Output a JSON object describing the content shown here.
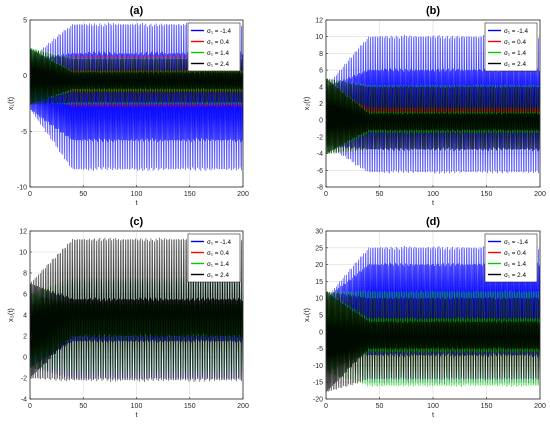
{
  "chart_data": [
    {
      "type": "line",
      "title": "(a)",
      "xlabel": "t",
      "ylabel": "x₁(t)",
      "xlim": [
        0,
        200
      ],
      "ylim": [
        -10,
        5
      ],
      "xticks": [
        0,
        50,
        100,
        150,
        200
      ],
      "yticks": [
        -10,
        -5,
        0,
        5
      ],
      "grid": true,
      "legend_position": "top-right",
      "series": [
        {
          "name": "σ₁ = -1.4",
          "color": "#0000ff",
          "hi_start": 1.5,
          "lo_start": -3.0,
          "hi": 4.6,
          "lo": -8.4,
          "hi_inner": 2.0,
          "lo_inner": -5.8
        },
        {
          "name": "σ₁ = 0.4",
          "color": "#ff0000",
          "hi_start": 1.2,
          "lo_start": -1.2,
          "hi": 1.8,
          "lo": -2.8,
          "hi_inner": 0.5,
          "lo_inner": -1.5
        },
        {
          "name": "σ₁ = 1.4",
          "color": "#00cc00",
          "hi_start": 2.5,
          "lo_start": -2.5,
          "hi": 1.6,
          "lo": -2.6,
          "hi_inner": 0.4,
          "lo_inner": -1.4
        },
        {
          "name": "σ₁ = 2.4",
          "color": "#000000",
          "hi_start": 2.4,
          "lo_start": -2.6,
          "hi": 1.5,
          "lo": -2.4,
          "hi_inner": 0.3,
          "lo_inner": -1.2
        }
      ]
    },
    {
      "type": "line",
      "title": "(b)",
      "xlabel": "t",
      "ylabel": "x₂(t)",
      "xlim": [
        0,
        200
      ],
      "ylim": [
        -8,
        12
      ],
      "xticks": [
        0,
        50,
        100,
        150,
        200
      ],
      "yticks": [
        -8,
        -6,
        -4,
        -2,
        0,
        2,
        4,
        6,
        8,
        10,
        12
      ],
      "grid": true,
      "legend_position": "top-right",
      "series": [
        {
          "name": "σ₁ = -1.4",
          "color": "#0000ff",
          "hi_start": 4.0,
          "lo_start": -3.0,
          "hi": 10.0,
          "lo": -6.2,
          "hi_inner": 6.0,
          "lo_inner": -3.5
        },
        {
          "name": "σ₁ = 0.4",
          "color": "#ff0000",
          "hi_start": 4.0,
          "lo_start": -3.0,
          "hi": 4.0,
          "lo": -3.5,
          "hi_inner": 1.5,
          "lo_inner": -1.0
        },
        {
          "name": "σ₁ = 1.4",
          "color": "#00cc00",
          "hi_start": 5.0,
          "lo_start": -4.0,
          "hi": 4.2,
          "lo": -3.5,
          "hi_inner": 1.0,
          "lo_inner": -1.5
        },
        {
          "name": "σ₁ = 2.4",
          "color": "#000000",
          "hi_start": 5.0,
          "lo_start": -4.0,
          "hi": 4.0,
          "lo": -3.5,
          "hi_inner": 0.8,
          "lo_inner": -1.2
        }
      ]
    },
    {
      "type": "line",
      "title": "(c)",
      "xlabel": "t",
      "ylabel": "x₃(t)",
      "xlim": [
        0,
        200
      ],
      "ylim": [
        -4,
        12
      ],
      "xticks": [
        0,
        50,
        100,
        150,
        200
      ],
      "yticks": [
        -4,
        -2,
        0,
        2,
        4,
        6,
        8,
        10,
        12
      ],
      "grid": true,
      "legend_position": "top-right",
      "series": [
        {
          "name": "σ₁ = -1.4",
          "color": "#0000ff",
          "hi_start": 5.0,
          "lo_start": -1.0,
          "hi": 7.2,
          "lo": -2.0,
          "hi_inner": 5.0,
          "lo_inner": 1.5
        },
        {
          "name": "σ₁ = 0.4",
          "color": "#ff0000",
          "hi_start": 5.0,
          "lo_start": 0.0,
          "hi": 5.5,
          "lo": 0.5,
          "hi_inner": 4.5,
          "lo_inner": 2.5
        },
        {
          "name": "σ₁ = 1.4",
          "color": "#00cc00",
          "hi_start": 6.0,
          "lo_start": -1.0,
          "hi": 7.5,
          "lo": -1.5,
          "hi_inner": 5.0,
          "lo_inner": 2.0
        },
        {
          "name": "σ₁ = 2.4",
          "color": "#000000",
          "hi_start": 7.0,
          "lo_start": -2.0,
          "hi": 11.2,
          "lo": -2.2,
          "hi_inner": 5.5,
          "lo_inner": 2.0
        }
      ]
    },
    {
      "type": "line",
      "title": "(d)",
      "xlabel": "t",
      "ylabel": "x₄(t)",
      "xlim": [
        0,
        200
      ],
      "ylim": [
        -20,
        30
      ],
      "xticks": [
        0,
        50,
        100,
        150,
        200
      ],
      "yticks": [
        -20,
        -15,
        -10,
        -5,
        0,
        5,
        10,
        15,
        20,
        25,
        30
      ],
      "grid": true,
      "legend_position": "top-right",
      "series": [
        {
          "name": "σ₁ = -1.4",
          "color": "#0000ff",
          "hi_start": 10.0,
          "lo_start": -5.0,
          "hi": 25.0,
          "lo": -15.0,
          "hi_inner": 20.0,
          "lo_inner": -7.0
        },
        {
          "name": "σ₁ = 0.4",
          "color": "#ff0000",
          "hi_start": 10.0,
          "lo_start": -8.0,
          "hi": 10.0,
          "lo": -12.0,
          "hi_inner": 3.0,
          "lo_inner": -5.0
        },
        {
          "name": "σ₁ = 1.4",
          "color": "#00cc00",
          "hi_start": 12.0,
          "lo_start": -12.0,
          "hi": 12.0,
          "lo": -16.0,
          "hi_inner": 4.0,
          "lo_inner": -6.0
        },
        {
          "name": "σ₁ = 2.4",
          "color": "#000000",
          "hi_start": 12.0,
          "lo_start": -18.0,
          "hi": 10.0,
          "lo": -14.0,
          "hi_inner": 3.0,
          "lo_inner": -5.0
        }
      ]
    }
  ]
}
